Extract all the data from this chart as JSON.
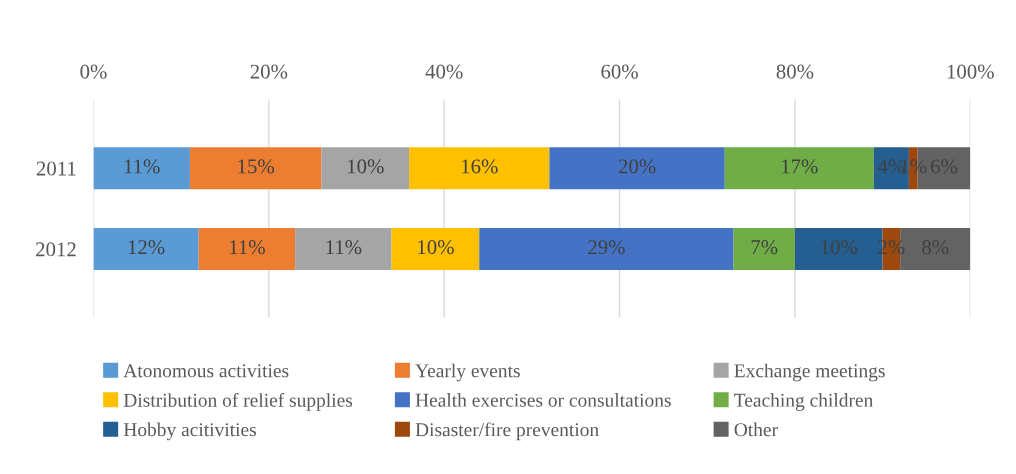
{
  "chart_data": {
    "type": "bar",
    "orientation": "horizontal",
    "stacked": true,
    "categories": [
      "2011",
      "2012"
    ],
    "series": [
      {
        "name": "Atonomous activities",
        "color": "#5b9bd5",
        "values": [
          11,
          12
        ],
        "value_labels": [
          "11%",
          "12%"
        ]
      },
      {
        "name": "Yearly events",
        "color": "#ed7d31",
        "values": [
          15,
          11
        ],
        "value_labels": [
          "15%",
          "11%"
        ]
      },
      {
        "name": "Exchange meetings",
        "color": "#a5a5a5",
        "values": [
          10,
          11
        ],
        "value_labels": [
          "10%",
          "11%"
        ]
      },
      {
        "name": "Distribution of relief supplies",
        "color": "#ffc000",
        "values": [
          16,
          10
        ],
        "value_labels": [
          "16%",
          "10%"
        ]
      },
      {
        "name": "Health exercises or consultations",
        "color": "#4472c4",
        "values": [
          20,
          29
        ],
        "value_labels": [
          "20%",
          "29%"
        ]
      },
      {
        "name": "Teaching children",
        "color": "#70ad47",
        "values": [
          17,
          7
        ],
        "value_labels": [
          "17%",
          "7%"
        ]
      },
      {
        "name": "Hobby acitivities",
        "color": "#255e91",
        "values": [
          4,
          10
        ],
        "value_labels": [
          "4%",
          "10%"
        ]
      },
      {
        "name": "Disaster/fire prevention",
        "color": "#9e480e",
        "values": [
          1,
          2
        ],
        "value_labels": [
          "1%",
          "2%"
        ]
      },
      {
        "name": "Other",
        "color": "#636363",
        "values": [
          6,
          8
        ],
        "value_labels": [
          "6%",
          "8%"
        ]
      }
    ],
    "xlim": [
      0,
      100
    ],
    "xticks": [
      {
        "value": 0,
        "label": "0%"
      },
      {
        "value": 20,
        "label": "20%"
      },
      {
        "value": 40,
        "label": "40%"
      },
      {
        "value": 60,
        "label": "60%"
      },
      {
        "value": 80,
        "label": "80%"
      },
      {
        "value": 100,
        "label": "100%"
      }
    ],
    "grid": "x",
    "legend": "bottom"
  }
}
